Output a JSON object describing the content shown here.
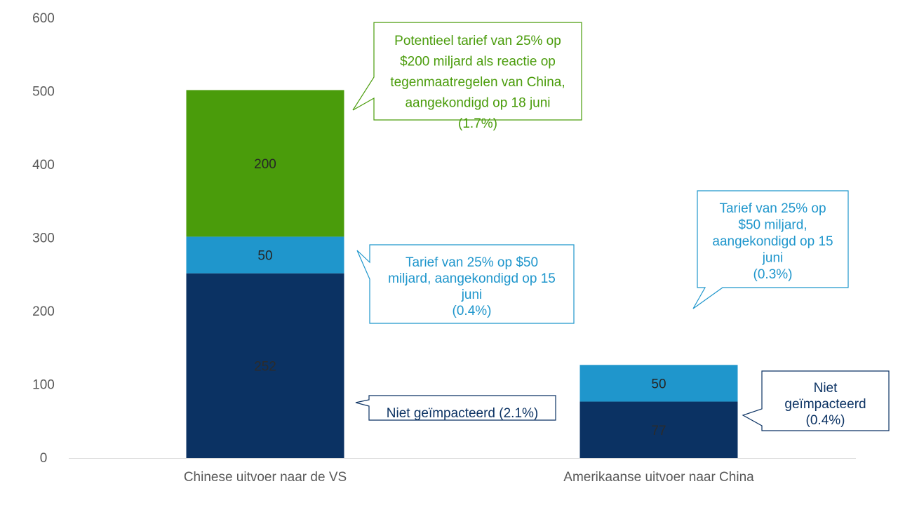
{
  "chart_data": {
    "type": "bar",
    "stacked": true,
    "categories": [
      "Chinese uitvoer naar de VS",
      "Amerikaanse uitvoer naar China"
    ],
    "series": [
      {
        "key": "niet",
        "values": [
          252,
          77
        ],
        "labels": [
          "252",
          "77"
        ]
      },
      {
        "key": "t50",
        "values": [
          50,
          50
        ],
        "labels": [
          "50",
          "50"
        ]
      },
      {
        "key": "t200",
        "values": [
          200,
          0
        ],
        "labels": [
          "200",
          ""
        ]
      }
    ],
    "ylim": [
      0,
      600
    ],
    "yticks": [
      "0",
      "100",
      "200",
      "300",
      "400",
      "500",
      "600"
    ],
    "grid": false,
    "colors": {
      "niet": "#0b3263",
      "t50": "#1f96cc",
      "t200": "#4a9c0b",
      "axis": "#d9d9d9",
      "tick_text": "#595959"
    },
    "label_colors": {
      "niet": "#2b2b2b",
      "t50": "#262626",
      "t200": "#262626"
    },
    "callouts": [
      {
        "id": "c200",
        "color": "#4a9c0b",
        "lines": [
          "Potentieel tarief van 25% op",
          "$200 miljard als reactie op",
          "tegenmaatregelen van China,",
          "aangekondigd op 18 juni",
          "(1.7%)"
        ]
      },
      {
        "id": "c50a",
        "color": "#1f96cc",
        "lines": [
          "Tarief van 25% op $50",
          "miljard, aangekondigd op 15",
          "juni",
          "(0.4%)"
        ]
      },
      {
        "id": "cniet_a",
        "color": "#0b3263",
        "lines": [
          "Niet geïmpacteerd (2.1%)"
        ]
      },
      {
        "id": "c50b",
        "color": "#1f96cc",
        "lines": [
          "Tarief van 25% op",
          "$50 miljard,",
          "aangekondigd op 15",
          "juni",
          "(0.3%)"
        ]
      },
      {
        "id": "cniet_b",
        "color": "#0b3263",
        "lines": [
          "Niet",
          "geïmpacteerd",
          "(0.4%)"
        ]
      }
    ]
  }
}
